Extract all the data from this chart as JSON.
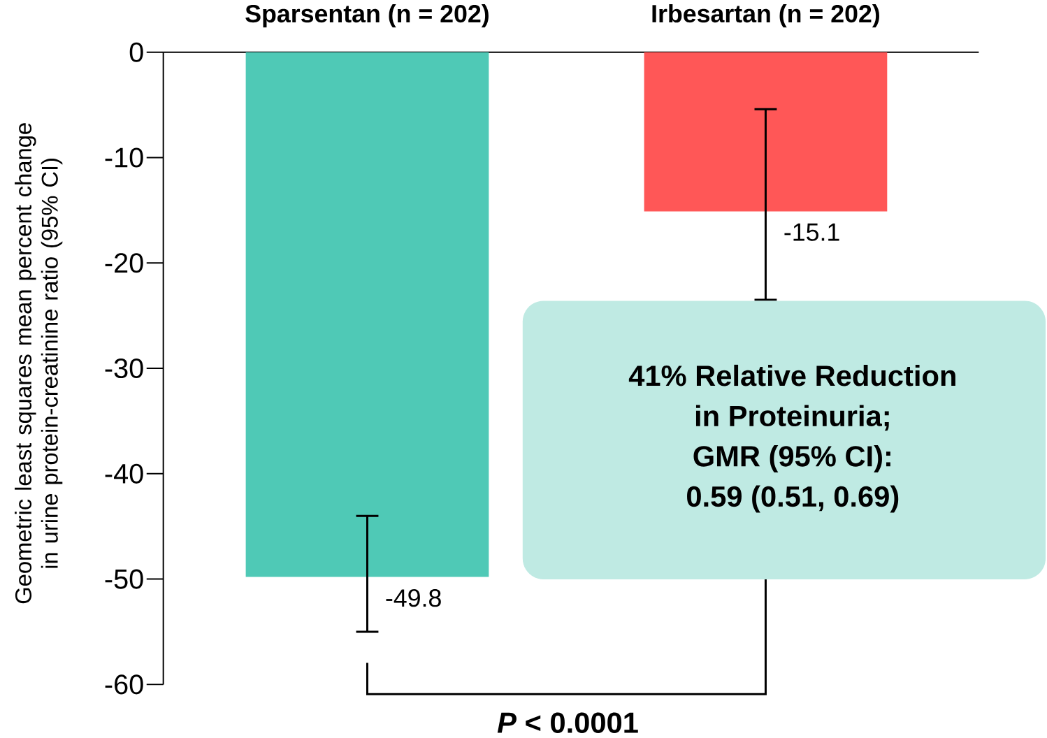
{
  "chart_data": {
    "type": "bar",
    "categories": [
      "Sparsentan (n = 202)",
      "Irbesartan (n = 202)"
    ],
    "values": [
      -49.8,
      -15.1
    ],
    "colors": [
      "#4fc9b6",
      "#ff5757"
    ],
    "errors": [
      [
        -55.0,
        -44.0
      ],
      [
        -23.5,
        -5.4
      ]
    ],
    "data_labels": true,
    "ylabel": "Geometric least squares mean percent change in urine protein-creatinine ratio (95% CI)",
    "ylim": [
      -60,
      0
    ],
    "yticks": [
      -60,
      -50,
      -40,
      -30,
      -20,
      -10,
      0
    ],
    "annotations": [
      "41% Relative Reduction",
      "in Proteinuria;",
      "GMR (95% CI):",
      "0.59 (0.51, 0.69)",
      "*P* < 0.0001"
    ]
  }
}
